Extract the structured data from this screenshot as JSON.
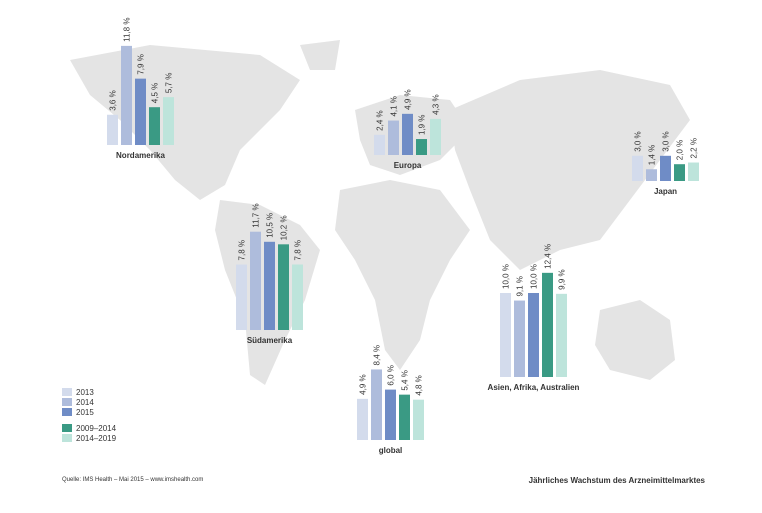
{
  "legend": {
    "series": [
      {
        "name": "2013",
        "color": "#d3dbec"
      },
      {
        "name": "2014",
        "color": "#aebcdc"
      },
      {
        "name": "2015",
        "color": "#6f8cc6"
      },
      {
        "name": "2009–2014",
        "color": "#3a9a84"
      },
      {
        "name": "2014–2019",
        "color": "#bde4db"
      }
    ]
  },
  "chart_data": [
    {
      "type": "bar",
      "title": "Nordamerika",
      "values": [
        3.6,
        11.8,
        7.9,
        4.5,
        5.7
      ],
      "value_labels": [
        "3,6 %",
        "11,8 %",
        "7,9 %",
        "4,5 %",
        "5,7 %"
      ]
    },
    {
      "type": "bar",
      "title": "Europa",
      "values": [
        2.4,
        4.1,
        4.9,
        1.9,
        4.3
      ],
      "value_labels": [
        "2,4 %",
        "4,1 %",
        "4,9 %",
        "1,9 %",
        "4,3 %"
      ]
    },
    {
      "type": "bar",
      "title": "Japan",
      "values": [
        3.0,
        1.4,
        3.0,
        2.0,
        2.2
      ],
      "value_labels": [
        "3,0 %",
        "1,4 %",
        "3,0 %",
        "2,0 %",
        "2,2 %"
      ]
    },
    {
      "type": "bar",
      "title": "Südamerika",
      "values": [
        7.8,
        11.7,
        10.5,
        10.2,
        7.8
      ],
      "value_labels": [
        "7,8 %",
        "11,7 %",
        "10,5 %",
        "10,2 %",
        "7,8 %"
      ]
    },
    {
      "type": "bar",
      "title": "Asien, Afrika, Australien",
      "values": [
        10.0,
        9.1,
        10.0,
        12.4,
        9.9
      ],
      "value_labels": [
        "10,0 %",
        "9,1 %",
        "10,0 %",
        "12,4 %",
        "9,9 %"
      ]
    },
    {
      "type": "bar",
      "title": "global",
      "values": [
        4.9,
        8.4,
        6.0,
        5.4,
        4.8
      ],
      "value_labels": [
        "4,9 %",
        "8,4 %",
        "6,0 %",
        "5,4 %",
        "4,8 %"
      ]
    }
  ],
  "source": "Quelle: IMS Health – Mai 2015 – www.imshealth.com",
  "caption": "Jährliches Wachstum des Arzneimittelmarktes"
}
